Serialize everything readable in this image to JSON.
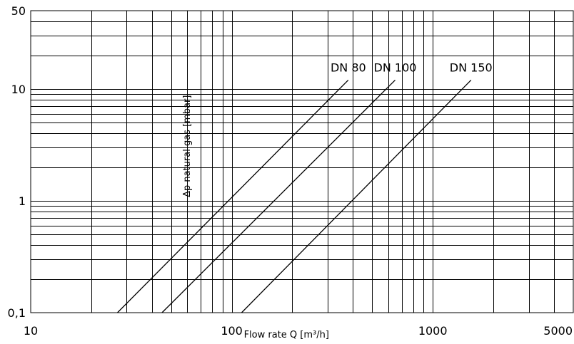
{
  "chart_data": {
    "type": "line",
    "x_scale": "log",
    "y_scale": "log",
    "xlim": [
      10,
      5000
    ],
    "ylim": [
      0.1,
      50
    ],
    "xlabel": "Flow rate Q [m³/h]",
    "ylabel": "Δp natural gas [mbar]",
    "x_ticks": [
      {
        "value": 10,
        "label": "10"
      },
      {
        "value": 100,
        "label": "100"
      },
      {
        "value": 1000,
        "label": "1000"
      },
      {
        "value": 5000,
        "label": "5000"
      }
    ],
    "y_ticks": [
      {
        "value": 0.1,
        "label": "0,1"
      },
      {
        "value": 1,
        "label": "1"
      },
      {
        "value": 10,
        "label": "10"
      },
      {
        "value": 50,
        "label": "50"
      }
    ],
    "grid": true,
    "series": [
      {
        "name": "DN 80",
        "x": [
          27,
          380
        ],
        "y": [
          0.1,
          12
        ]
      },
      {
        "name": "DN 100",
        "x": [
          45,
          650
        ],
        "y": [
          0.1,
          12
        ]
      },
      {
        "name": "DN 150",
        "x": [
          112,
          1550
        ],
        "y": [
          0.1,
          12
        ]
      }
    ]
  }
}
